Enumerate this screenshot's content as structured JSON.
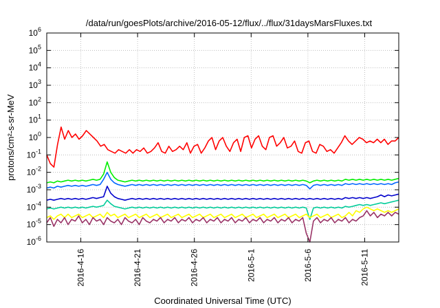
{
  "chart_data": {
    "type": "line",
    "title": "/data/run/goesPlots/archive/2016-05-12/flux/../flux/31daysMarsFluxes.txt",
    "xlabel": "Coordinated Universal Time (UTC)",
    "ylabel": "protons/cm²-s-sr-MeV",
    "yscale": "log",
    "ylim_exponents": [
      -6,
      6
    ],
    "y_tick_exponents": [
      -6,
      -5,
      -4,
      -3,
      -2,
      -1,
      0,
      1,
      2,
      3,
      4,
      5,
      6
    ],
    "xlim_days": [
      0,
      31
    ],
    "x_tick_labels": [
      "2016-4-16",
      "2016-4-21",
      "2016-4-26",
      "2016-5-1",
      "2016-5-6",
      "2016-5-11"
    ],
    "x_tick_days": [
      3,
      8,
      13,
      18,
      23,
      28
    ],
    "grid": true,
    "legend": "none",
    "series": [
      {
        "color": "#ff0000",
        "log10_values": [
          -1,
          -1.5,
          -1.7,
          -0.4,
          0.6,
          -0.1,
          0.4,
          0.0,
          0.2,
          -0.1,
          0.1,
          0.4,
          0.2,
          0.0,
          -0.2,
          -0.5,
          -0.4,
          -0.7,
          -0.8,
          -0.9,
          -0.7,
          -0.8,
          -0.9,
          -0.7,
          -0.9,
          -0.7,
          -0.8,
          -0.6,
          -0.9,
          -0.8,
          -0.6,
          -0.3,
          -0.8,
          -0.9,
          -0.5,
          -0.8,
          -0.7,
          -0.5,
          -0.7,
          -0.3,
          -0.9,
          -0.5,
          -0.4,
          -0.9,
          -0.6,
          -0.2,
          0.0,
          -0.7,
          -0.2,
          0.0,
          -0.5,
          -0.8,
          -0.3,
          -0.1,
          -0.8,
          0.0,
          0.1,
          -0.6,
          -0.1,
          0.1,
          -0.5,
          -0.7,
          0.0,
          0.1,
          -0.5,
          -0.3,
          0.0,
          -0.6,
          -0.5,
          -0.2,
          -0.8,
          -0.9,
          -0.3,
          -0.2,
          -0.8,
          -0.9,
          -0.4,
          -0.5,
          -0.8,
          -0.7,
          -0.9,
          -0.6,
          -0.3,
          0.1,
          -0.2,
          -0.4,
          -0.2,
          0.0,
          -0.1,
          -0.3,
          -0.2,
          -0.3,
          -0.1,
          -0.3,
          -0.1,
          -0.4,
          -0.2,
          -0.2,
          0.0
        ]
      },
      {
        "color": "#00ee00",
        "log10_values": [
          -2.6,
          -2.55,
          -2.6,
          -2.5,
          -2.55,
          -2.5,
          -2.45,
          -2.5,
          -2.45,
          -2.5,
          -2.45,
          -2.5,
          -2.45,
          -2.4,
          -2.45,
          -2.4,
          -2.1,
          -1.4,
          -2.0,
          -2.3,
          -2.45,
          -2.5,
          -2.55,
          -2.5,
          -2.45,
          -2.5,
          -2.45,
          -2.5,
          -2.45,
          -2.5,
          -2.45,
          -2.5,
          -2.45,
          -2.5,
          -2.45,
          -2.5,
          -2.45,
          -2.5,
          -2.45,
          -2.5,
          -2.45,
          -2.5,
          -2.45,
          -2.5,
          -2.45,
          -2.5,
          -2.45,
          -2.5,
          -2.45,
          -2.5,
          -2.45,
          -2.5,
          -2.45,
          -2.5,
          -2.45,
          -2.5,
          -2.45,
          -2.5,
          -2.45,
          -2.5,
          -2.45,
          -2.5,
          -2.45,
          -2.5,
          -2.45,
          -2.5,
          -2.45,
          -2.5,
          -2.45,
          -2.5,
          -2.45,
          -2.5,
          -2.45,
          -2.5,
          -2.6,
          -2.5,
          -2.45,
          -2.5,
          -2.45,
          -2.5,
          -2.45,
          -2.5,
          -2.45,
          -2.5,
          -2.4,
          -2.45,
          -2.4,
          -2.45,
          -2.4,
          -2.45,
          -2.4,
          -2.45,
          -2.4,
          -2.45,
          -2.4,
          -2.45,
          -2.4,
          -2.45,
          -2.4,
          -2.35
        ]
      },
      {
        "color": "#0066ff",
        "log10_values": [
          -2.9,
          -2.85,
          -2.9,
          -2.8,
          -2.85,
          -2.8,
          -2.75,
          -2.8,
          -2.75,
          -2.8,
          -2.75,
          -2.8,
          -2.75,
          -2.7,
          -2.75,
          -2.7,
          -2.4,
          -2.0,
          -2.4,
          -2.6,
          -2.7,
          -2.75,
          -2.8,
          -2.75,
          -2.7,
          -2.75,
          -2.7,
          -2.75,
          -2.7,
          -2.75,
          -2.7,
          -2.75,
          -2.7,
          -2.75,
          -2.7,
          -2.75,
          -2.7,
          -2.75,
          -2.7,
          -2.75,
          -2.7,
          -2.75,
          -2.7,
          -2.75,
          -2.7,
          -2.75,
          -2.7,
          -2.75,
          -2.7,
          -2.75,
          -2.7,
          -2.75,
          -2.7,
          -2.75,
          -2.7,
          -2.75,
          -2.7,
          -2.75,
          -2.7,
          -2.75,
          -2.7,
          -2.75,
          -2.7,
          -2.75,
          -2.7,
          -2.75,
          -2.7,
          -2.75,
          -2.7,
          -2.75,
          -2.7,
          -2.75,
          -2.7,
          -2.75,
          -2.95,
          -2.75,
          -2.7,
          -2.75,
          -2.7,
          -2.75,
          -2.7,
          -2.75,
          -2.7,
          -2.75,
          -2.65,
          -2.7,
          -2.65,
          -2.7,
          -2.65,
          -2.7,
          -2.65,
          -2.7,
          -2.65,
          -2.7,
          -2.65,
          -2.7,
          -2.65,
          -2.7,
          -2.6,
          -2.55
        ]
      },
      {
        "color": "#0000cc",
        "log10_values": [
          -3.6,
          -3.55,
          -3.6,
          -3.55,
          -3.5,
          -3.55,
          -3.5,
          -3.55,
          -3.5,
          -3.55,
          -3.5,
          -3.55,
          -3.5,
          -3.45,
          -3.5,
          -3.45,
          -3.4,
          -2.8,
          -3.2,
          -3.4,
          -3.5,
          -3.55,
          -3.6,
          -3.55,
          -3.5,
          -3.55,
          -3.5,
          -3.55,
          -3.5,
          -3.55,
          -3.5,
          -3.55,
          -3.5,
          -3.55,
          -3.5,
          -3.55,
          -3.5,
          -3.55,
          -3.5,
          -3.55,
          -3.5,
          -3.55,
          -3.5,
          -3.55,
          -3.5,
          -3.55,
          -3.5,
          -3.55,
          -3.5,
          -3.55,
          -3.5,
          -3.55,
          -3.5,
          -3.55,
          -3.5,
          -3.55,
          -3.5,
          -3.55,
          -3.5,
          -3.55,
          -3.5,
          -3.55,
          -3.5,
          -3.55,
          -3.5,
          -3.55,
          -3.5,
          -3.55,
          -3.5,
          -3.55,
          -3.5,
          -3.55,
          -3.5,
          -3.55,
          -3.5,
          -3.55,
          -3.5,
          -3.55,
          -3.5,
          -3.55,
          -3.5,
          -3.55,
          -3.5,
          -3.55,
          -3.45,
          -3.5,
          -3.45,
          -3.5,
          -3.45,
          -3.5,
          -3.45,
          -3.5,
          -3.45,
          -3.4,
          -3.3,
          -3.4,
          -3.3,
          -3.35,
          -3.3,
          -3.25
        ]
      },
      {
        "color": "#00cc99",
        "log10_values": [
          -4.1,
          -4.05,
          -4.1,
          -4.05,
          -4.0,
          -4.05,
          -4.0,
          -4.05,
          -4.0,
          -4.05,
          -4.0,
          -4.05,
          -4.0,
          -3.95,
          -4.0,
          -3.95,
          -3.9,
          -3.6,
          -3.8,
          -3.95,
          -4.0,
          -4.05,
          -4.1,
          -4.05,
          -4.0,
          -4.05,
          -4.0,
          -4.05,
          -4.0,
          -4.05,
          -4.0,
          -4.05,
          -4.0,
          -4.05,
          -4.0,
          -4.05,
          -4.0,
          -4.05,
          -4.0,
          -4.05,
          -4.0,
          -4.05,
          -4.0,
          -4.05,
          -4.0,
          -4.05,
          -4.0,
          -4.05,
          -4.0,
          -4.05,
          -4.0,
          -4.05,
          -4.0,
          -4.05,
          -4.0,
          -4.05,
          -4.0,
          -4.05,
          -4.0,
          -4.05,
          -4.0,
          -4.05,
          -4.0,
          -4.05,
          -4.0,
          -4.05,
          -4.0,
          -4.05,
          -4.0,
          -4.05,
          -4.0,
          -4.05,
          -4.0,
          -4.05,
          -4.7,
          -4.05,
          -4.0,
          -4.05,
          -4.0,
          -4.05,
          -4.0,
          -4.05,
          -4.0,
          -4.05,
          -3.95,
          -4.0,
          -3.95,
          -3.9,
          -3.85,
          -3.9,
          -3.85,
          -3.9,
          -3.85,
          -3.8,
          -3.75,
          -3.8,
          -3.75,
          -3.7,
          -3.65,
          -3.6
        ]
      },
      {
        "color": "#ffff00",
        "log10_values": [
          -4.6,
          -4.5,
          -4.7,
          -4.5,
          -4.4,
          -4.6,
          -4.4,
          -4.6,
          -4.5,
          -4.4,
          -4.6,
          -4.5,
          -4.4,
          -4.6,
          -4.5,
          -4.4,
          -4.6,
          -4.3,
          -4.5,
          -4.4,
          -4.6,
          -4.5,
          -4.4,
          -4.6,
          -4.5,
          -4.4,
          -4.6,
          -4.5,
          -4.4,
          -4.6,
          -4.5,
          -4.4,
          -4.6,
          -4.5,
          -4.4,
          -4.6,
          -4.5,
          -4.4,
          -4.6,
          -4.5,
          -4.4,
          -4.6,
          -4.5,
          -4.4,
          -4.6,
          -4.5,
          -4.4,
          -4.6,
          -4.5,
          -4.4,
          -4.6,
          -4.5,
          -4.4,
          -4.6,
          -4.5,
          -4.4,
          -4.6,
          -4.5,
          -4.4,
          -4.6,
          -4.5,
          -4.4,
          -4.6,
          -4.5,
          -4.4,
          -4.6,
          -4.5,
          -4.4,
          -4.6,
          -4.5,
          -4.4,
          -4.6,
          -4.5,
          -4.4,
          -4.6,
          -4.5,
          -4.4,
          -4.6,
          -4.5,
          -4.4,
          -4.6,
          -4.5,
          -4.4,
          -4.6,
          -4.5,
          -4.3,
          -4.5,
          -4.2,
          -4.3,
          -4.1,
          -4.0,
          -4.1,
          -4.2,
          -4.1,
          -4.2,
          -4.3,
          -4.2,
          -4.3,
          -4.2,
          -4.1
        ]
      },
      {
        "color": "#993366",
        "log10_values": [
          -4.9,
          -4.6,
          -5.1,
          -4.7,
          -4.9,
          -4.6,
          -5.0,
          -4.7,
          -4.8,
          -4.5,
          -4.9,
          -4.7,
          -5.0,
          -4.6,
          -4.8,
          -4.7,
          -5.0,
          -4.6,
          -4.8,
          -4.9,
          -4.7,
          -5.0,
          -4.6,
          -4.8,
          -4.9,
          -4.7,
          -5.0,
          -4.6,
          -4.8,
          -4.9,
          -4.7,
          -4.8,
          -4.6,
          -4.9,
          -4.7,
          -4.8,
          -4.6,
          -4.9,
          -4.7,
          -4.8,
          -4.6,
          -4.9,
          -4.7,
          -4.8,
          -4.6,
          -4.9,
          -4.7,
          -4.8,
          -4.6,
          -4.9,
          -4.7,
          -4.8,
          -4.6,
          -4.9,
          -4.7,
          -4.8,
          -4.6,
          -4.9,
          -4.7,
          -4.8,
          -4.6,
          -4.9,
          -4.7,
          -4.8,
          -4.6,
          -4.9,
          -4.7,
          -4.8,
          -4.6,
          -4.9,
          -4.7,
          -4.8,
          -4.6,
          -5.5,
          -6.0,
          -4.8,
          -4.6,
          -4.9,
          -4.7,
          -4.8,
          -4.6,
          -4.9,
          -4.7,
          -4.8,
          -4.6,
          -4.9,
          -4.7,
          -4.8,
          -4.6,
          -4.5,
          -4.2,
          -4.5,
          -4.3,
          -4.6,
          -4.4,
          -4.5,
          -4.3,
          -4.5,
          -4.3,
          -4.4
        ]
      }
    ]
  }
}
